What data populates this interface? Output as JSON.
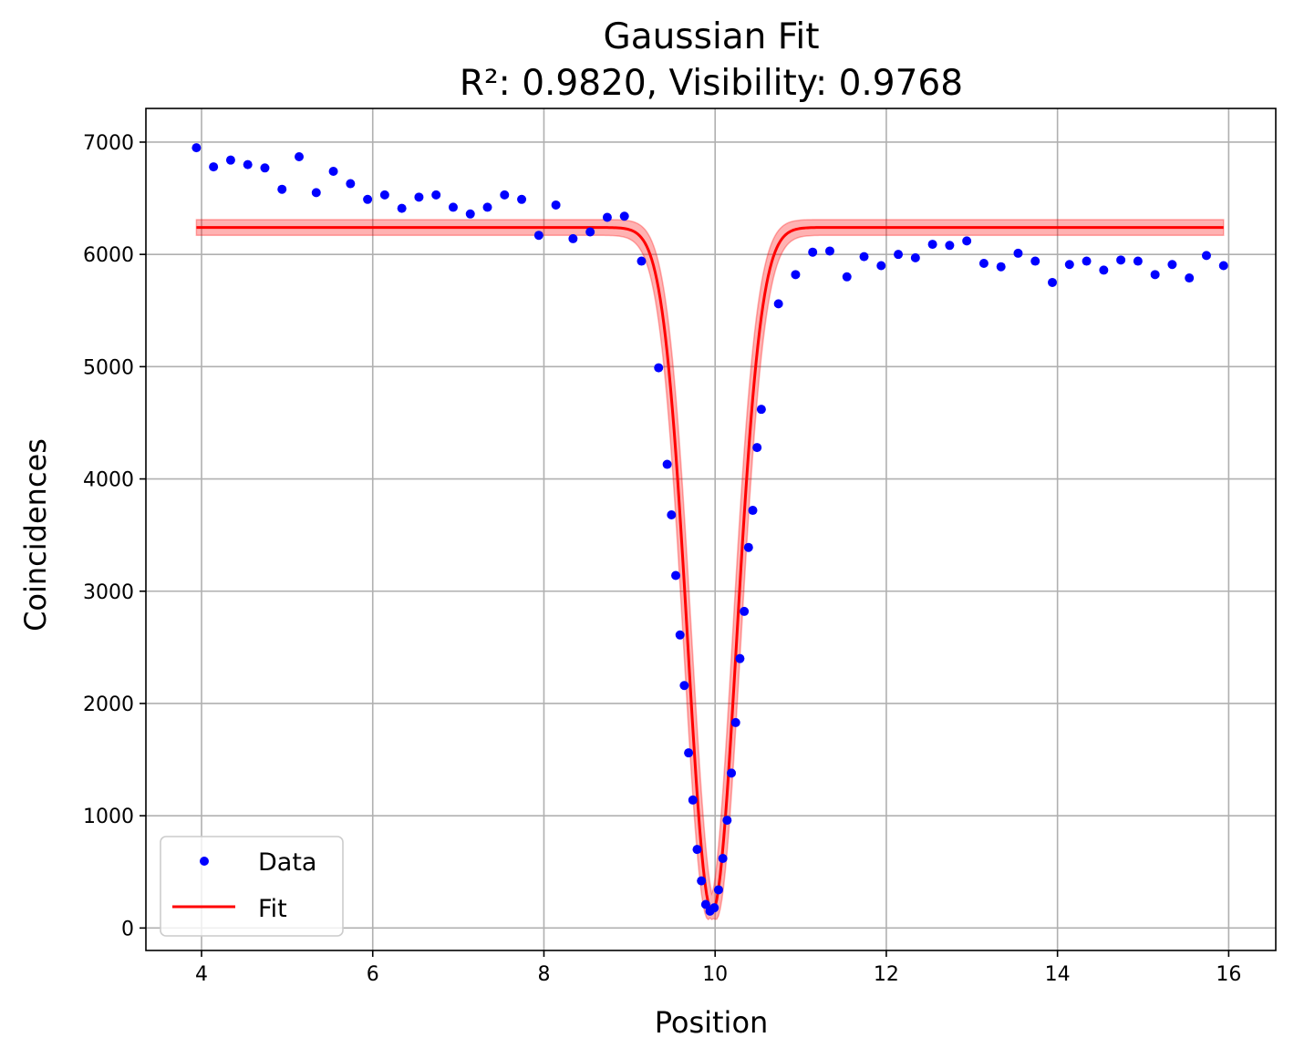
{
  "chart_data": {
    "type": "scatter",
    "title": "Gaussian Fit",
    "subtitle": "R²: 0.9820, Visibility: 0.9768",
    "xlabel": "Position",
    "ylabel": "Coincidences",
    "xlim": [
      3.35,
      16.55
    ],
    "ylim": [
      -200,
      7300
    ],
    "xticks": [
      4,
      6,
      8,
      10,
      12,
      14,
      16
    ],
    "yticks": [
      0,
      1000,
      2000,
      3000,
      4000,
      5000,
      6000,
      7000
    ],
    "xtick_labels": [
      "4",
      "6",
      "8",
      "10",
      "12",
      "14",
      "16"
    ],
    "ytick_labels": [
      "0",
      "1000",
      "2000",
      "3000",
      "4000",
      "5000",
      "6000",
      "7000"
    ],
    "grid": true,
    "legend": {
      "location": "lower-left",
      "entries": [
        {
          "label": "Data",
          "marker": "dot",
          "color": "#0000ff"
        },
        {
          "label": "Fit",
          "marker": "line",
          "color": "#ff0000"
        }
      ]
    },
    "series": [
      {
        "name": "Data",
        "kind": "scatter",
        "color": "#0000ff",
        "points": [
          [
            3.94,
            6950
          ],
          [
            4.14,
            6780
          ],
          [
            4.34,
            6840
          ],
          [
            4.54,
            6800
          ],
          [
            4.74,
            6770
          ],
          [
            4.94,
            6580
          ],
          [
            5.14,
            6870
          ],
          [
            5.34,
            6550
          ],
          [
            5.54,
            6740
          ],
          [
            5.74,
            6630
          ],
          [
            5.94,
            6490
          ],
          [
            6.14,
            6530
          ],
          [
            6.34,
            6410
          ],
          [
            6.54,
            6510
          ],
          [
            6.74,
            6530
          ],
          [
            6.94,
            6420
          ],
          [
            7.14,
            6360
          ],
          [
            7.34,
            6420
          ],
          [
            7.54,
            6530
          ],
          [
            7.74,
            6490
          ],
          [
            7.94,
            6170
          ],
          [
            8.14,
            6440
          ],
          [
            8.34,
            6140
          ],
          [
            8.54,
            6200
          ],
          [
            8.74,
            6330
          ],
          [
            8.94,
            6340
          ],
          [
            9.14,
            5940
          ],
          [
            9.34,
            4990
          ],
          [
            9.44,
            4130
          ],
          [
            9.49,
            3680
          ],
          [
            9.54,
            3140
          ],
          [
            9.59,
            2610
          ],
          [
            9.64,
            2160
          ],
          [
            9.69,
            1560
          ],
          [
            9.74,
            1140
          ],
          [
            9.79,
            700
          ],
          [
            9.84,
            420
          ],
          [
            9.89,
            210
          ],
          [
            9.94,
            150
          ],
          [
            9.99,
            180
          ],
          [
            10.04,
            340
          ],
          [
            10.09,
            620
          ],
          [
            10.14,
            960
          ],
          [
            10.19,
            1380
          ],
          [
            10.24,
            1830
          ],
          [
            10.29,
            2400
          ],
          [
            10.34,
            2820
          ],
          [
            10.39,
            3390
          ],
          [
            10.44,
            3720
          ],
          [
            10.49,
            4280
          ],
          [
            10.54,
            4620
          ],
          [
            10.74,
            5560
          ],
          [
            10.94,
            5820
          ],
          [
            11.14,
            6020
          ],
          [
            11.34,
            6030
          ],
          [
            11.54,
            5800
          ],
          [
            11.74,
            5980
          ],
          [
            11.94,
            5900
          ],
          [
            12.14,
            6000
          ],
          [
            12.34,
            5970
          ],
          [
            12.54,
            6090
          ],
          [
            12.74,
            6080
          ],
          [
            12.94,
            6120
          ],
          [
            13.14,
            5920
          ],
          [
            13.34,
            5890
          ],
          [
            13.54,
            6010
          ],
          [
            13.74,
            5940
          ],
          [
            13.94,
            5750
          ],
          [
            14.14,
            5910
          ],
          [
            14.34,
            5940
          ],
          [
            14.54,
            5860
          ],
          [
            14.74,
            5950
          ],
          [
            14.94,
            5940
          ],
          [
            15.14,
            5820
          ],
          [
            15.34,
            5910
          ],
          [
            15.54,
            5790
          ],
          [
            15.74,
            5990
          ],
          [
            15.94,
            5900
          ]
        ]
      },
      {
        "name": "Fit",
        "kind": "line",
        "color": "#ff0000",
        "model": "gaussian_dip",
        "x_range": [
          3.94,
          15.94
        ],
        "baseline": 6240,
        "depth": 6095,
        "center": 9.965,
        "sigma": 0.285,
        "band_halfwidth": 70,
        "band_color": "#ff0000"
      }
    ]
  }
}
